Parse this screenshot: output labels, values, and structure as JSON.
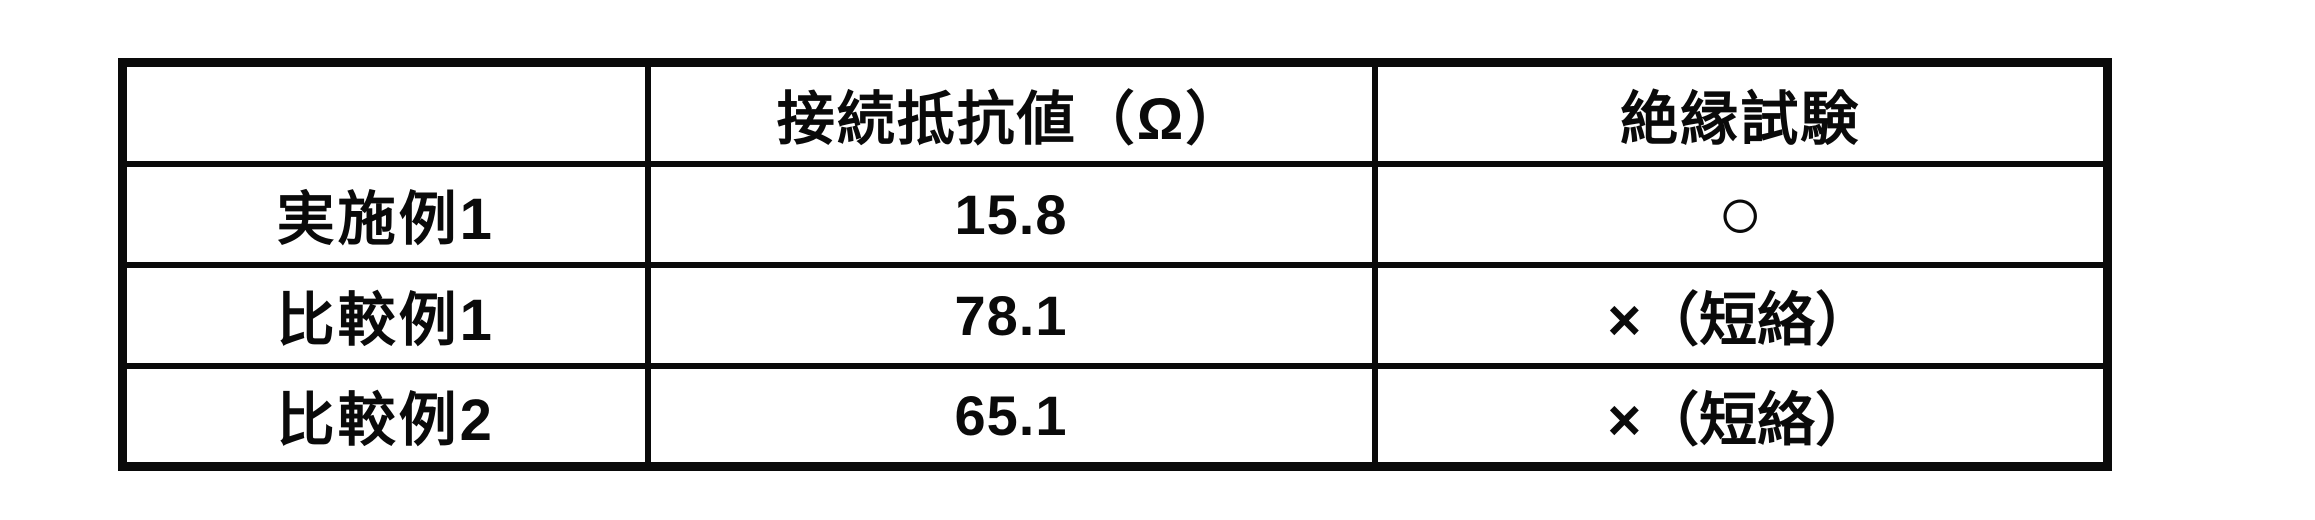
{
  "document": {
    "background": "#ffffff",
    "border_color": "#0a0a0a",
    "text_color": "#0a0a0a"
  },
  "table": {
    "headers": {
      "rowlabel": "",
      "resistance": "接続抵抗値（Ω）",
      "insulation": "絶縁試験"
    },
    "rows": [
      {
        "label": "実施例1",
        "resistance": "15.8",
        "insulation": "○"
      },
      {
        "label": "比較例1",
        "resistance": "78.1",
        "insulation": "×（短絡）"
      },
      {
        "label": "比較例2",
        "resistance": "65.1",
        "insulation": "×（短絡）"
      }
    ]
  }
}
